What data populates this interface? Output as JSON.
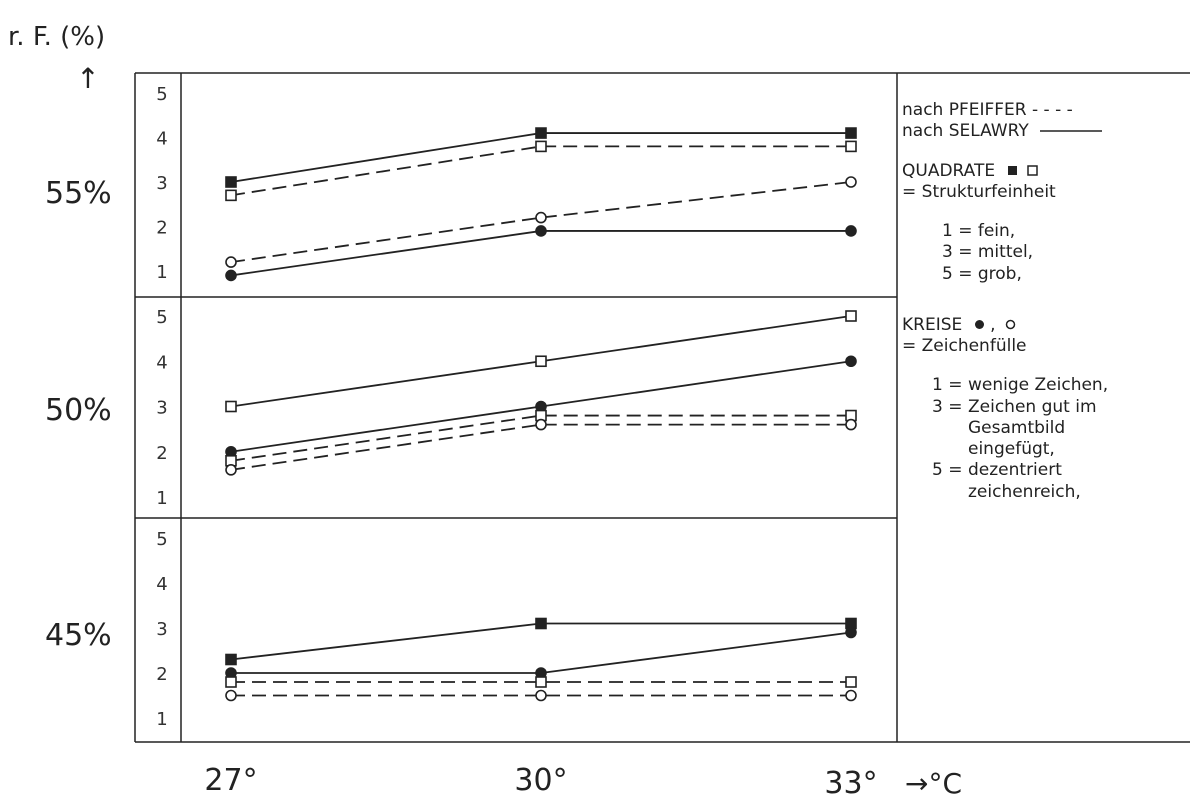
{
  "chart_data": {
    "type": "line",
    "ylabel": "r. F. (%)",
    "ylabel_arrow": "↑",
    "x": [
      "27°",
      "30°",
      "33°"
    ],
    "xunit": "→°C",
    "ylim": [
      1,
      5
    ],
    "yticks": [
      "1",
      "2",
      "3",
      "4",
      "5"
    ],
    "panels": [
      {
        "label": "55%",
        "series": [
          {
            "marker": "filled-square",
            "style": "solid",
            "values": [
              3.0,
              4.1,
              4.1
            ]
          },
          {
            "marker": "open-square",
            "style": "dashed",
            "values": [
              2.7,
              3.8,
              3.8
            ]
          },
          {
            "marker": "open-circle",
            "style": "dashed",
            "values": [
              1.2,
              2.2,
              3.0
            ]
          },
          {
            "marker": "filled-circle",
            "style": "solid",
            "values": [
              0.9,
              1.9,
              1.9
            ]
          }
        ]
      },
      {
        "label": "50%",
        "series": [
          {
            "marker": "open-square",
            "style": "solid",
            "values": [
              3.0,
              4.0,
              5.0
            ]
          },
          {
            "marker": "filled-circle",
            "style": "solid",
            "values": [
              2.0,
              3.0,
              4.0
            ]
          },
          {
            "marker": "open-square",
            "style": "dashed",
            "values": [
              1.8,
              2.8,
              2.8
            ]
          },
          {
            "marker": "open-circle",
            "style": "dashed",
            "values": [
              1.6,
              2.6,
              2.6
            ]
          }
        ]
      },
      {
        "label": "45%",
        "series": [
          {
            "marker": "filled-square",
            "style": "solid",
            "values": [
              2.3,
              3.1,
              3.1
            ]
          },
          {
            "marker": "filled-circle",
            "style": "solid",
            "values": [
              2.0,
              2.0,
              2.9
            ]
          },
          {
            "marker": "open-square",
            "style": "dashed",
            "values": [
              1.8,
              1.8,
              1.8
            ]
          },
          {
            "marker": "open-circle",
            "style": "dashed",
            "values": [
              1.5,
              1.5,
              1.5
            ]
          }
        ]
      }
    ]
  },
  "legend": {
    "pfeiffer": "nach PFEIFFER - - - -",
    "selawry": "nach SELAWRY",
    "quadrate_title": "QUADRATE",
    "quadrate_desc": "= Strukturfeinheit",
    "quadrate_scale": [
      "1 = fein,",
      "3 = mittel,",
      "5 = grob,"
    ],
    "kreise_title": "KREISE",
    "kreise_sep": ",",
    "kreise_desc": "= Zeichenfülle",
    "kreise_scale": [
      {
        "num": "1 =",
        "text": "wenige Zeichen,"
      },
      {
        "num": "3 =",
        "text": "Zeichen gut im"
      },
      {
        "num": "",
        "text": "Gesamtbild"
      },
      {
        "num": "",
        "text": "eingefügt,"
      },
      {
        "num": "5 =",
        "text": "dezentriert"
      },
      {
        "num": "",
        "text": "zeichenreich,"
      }
    ]
  }
}
